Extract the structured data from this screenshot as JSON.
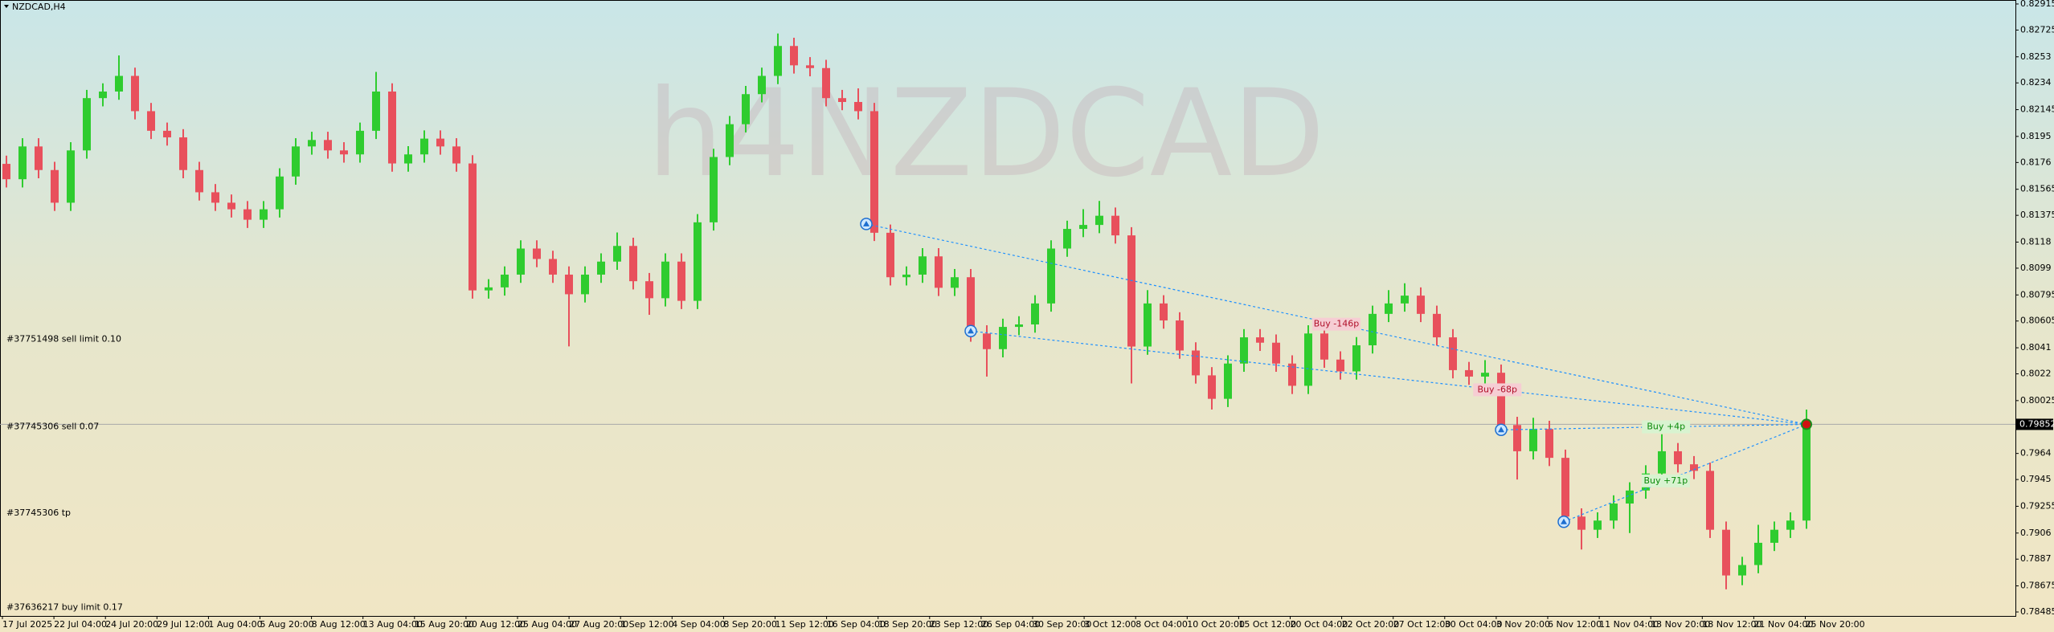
{
  "chart_data": {
    "type": "candlestick",
    "title": "NZDCAD,H4",
    "watermark": "h4NZDCAD",
    "up_color": "#2fcc2f",
    "down_color": "#e8505c",
    "ylim": [
      0.78456,
      0.82944
    ],
    "yticks": [
      0.82915,
      0.82725,
      0.8253,
      0.8234,
      0.82145,
      0.8195,
      0.8176,
      0.81565,
      0.81375,
      0.8118,
      0.8099,
      0.80795,
      0.80605,
      0.8041,
      0.8022,
      0.80025,
      0.7964,
      0.7945,
      0.79255,
      0.7906,
      0.7887,
      0.78675,
      0.78485
    ],
    "current_price": 0.79852,
    "categories": [
      "17 Jul 2025",
      "22 Jul 04:00",
      "24 Jul 20:00",
      "29 Jul 12:00",
      "1 Aug 04:00",
      "5 Aug 20:00",
      "8 Aug 12:00",
      "13 Aug 04:00",
      "15 Aug 20:00",
      "20 Aug 12:00",
      "25 Aug 04:00",
      "27 Aug 20:00",
      "1 Sep 12:00",
      "4 Sep 04:00",
      "8 Sep 20:00",
      "11 Sep 12:00",
      "16 Sep 04:00",
      "18 Sep 20:00",
      "23 Sep 12:00",
      "26 Sep 04:00",
      "30 Sep 20:00",
      "3 Oct 12:00",
      "8 Oct 04:00",
      "10 Oct 20:00",
      "15 Oct 12:00",
      "20 Oct 04:00",
      "22 Oct 20:00",
      "27 Oct 12:00",
      "30 Oct 04:00",
      "3 Nov 20:00",
      "6 Nov 12:00",
      "11 Nov 04:00",
      "13 Nov 20:00",
      "18 Nov 12:00",
      "21 Nov 04:00",
      "25 Nov 20:00"
    ],
    "ohlc": [
      [
        0.8175,
        0.8181,
        0.81578,
        0.81638
      ],
      [
        0.81638,
        0.81937,
        0.81578,
        0.81877
      ],
      [
        0.81877,
        0.81937,
        0.81645,
        0.81705
      ],
      [
        0.81705,
        0.81765,
        0.81407,
        0.81467
      ],
      [
        0.81467,
        0.81908,
        0.81407,
        0.81848
      ],
      [
        0.81848,
        0.82289,
        0.81788,
        0.82229
      ],
      [
        0.82229,
        0.82337,
        0.82169,
        0.82277
      ],
      [
        0.82277,
        0.8254,
        0.82217,
        0.82391
      ],
      [
        0.82391,
        0.82451,
        0.82074,
        0.82134
      ],
      [
        0.82134,
        0.82194,
        0.81931,
        0.81991
      ],
      [
        0.81991,
        0.82051,
        0.81883,
        0.81943
      ],
      [
        0.81943,
        0.82003,
        0.81645,
        0.81705
      ],
      [
        0.81705,
        0.81765,
        0.81483,
        0.81543
      ],
      [
        0.81543,
        0.81603,
        0.81407,
        0.81467
      ],
      [
        0.81467,
        0.81527,
        0.81359,
        0.81419
      ],
      [
        0.81419,
        0.81479,
        0.81283,
        0.81343
      ],
      [
        0.81343,
        0.81479,
        0.81283,
        0.81419
      ],
      [
        0.81419,
        0.81718,
        0.81359,
        0.81658
      ],
      [
        0.81658,
        0.81937,
        0.81598,
        0.81877
      ],
      [
        0.81877,
        0.81984,
        0.81817,
        0.81924
      ],
      [
        0.81924,
        0.81984,
        0.81788,
        0.81848
      ],
      [
        0.81848,
        0.81908,
        0.81759,
        0.81819
      ],
      [
        0.81819,
        0.82051,
        0.81759,
        0.81991
      ],
      [
        0.81991,
        0.8242,
        0.81931,
        0.82277
      ],
      [
        0.82277,
        0.82337,
        0.81693,
        0.81753
      ],
      [
        0.81753,
        0.81879,
        0.81693,
        0.81819
      ],
      [
        0.81819,
        0.81994,
        0.81759,
        0.81934
      ],
      [
        0.81934,
        0.81994,
        0.81817,
        0.81877
      ],
      [
        0.81877,
        0.81937,
        0.81693,
        0.81753
      ],
      [
        0.81753,
        0.81813,
        0.80768,
        0.80828
      ],
      [
        0.80828,
        0.8091,
        0.80768,
        0.8085
      ],
      [
        0.8085,
        0.81003,
        0.8079,
        0.80943
      ],
      [
        0.80943,
        0.81193,
        0.80883,
        0.81133
      ],
      [
        0.81133,
        0.81193,
        0.80997,
        0.81057
      ],
      [
        0.81057,
        0.81117,
        0.80883,
        0.80943
      ],
      [
        0.80943,
        0.81003,
        0.8042,
        0.808
      ],
      [
        0.808,
        0.81003,
        0.8074,
        0.80943
      ],
      [
        0.80943,
        0.81098,
        0.80883,
        0.81038
      ],
      [
        0.81038,
        0.8125,
        0.80978,
        0.81152
      ],
      [
        0.81152,
        0.81212,
        0.80835,
        0.80895
      ],
      [
        0.80895,
        0.80955,
        0.8065,
        0.80771
      ],
      [
        0.80771,
        0.81098,
        0.80711,
        0.81038
      ],
      [
        0.81038,
        0.81098,
        0.80692,
        0.80752
      ],
      [
        0.80752,
        0.81384,
        0.80692,
        0.81324
      ],
      [
        0.81324,
        0.8186,
        0.81264,
        0.818
      ],
      [
        0.818,
        0.82099,
        0.8174,
        0.82039
      ],
      [
        0.82039,
        0.82318,
        0.81979,
        0.82258
      ],
      [
        0.82258,
        0.82451,
        0.82198,
        0.82391
      ],
      [
        0.82391,
        0.827,
        0.82331,
        0.82609
      ],
      [
        0.82609,
        0.82669,
        0.82408,
        0.82468
      ],
      [
        0.82468,
        0.82528,
        0.82388,
        0.82448
      ],
      [
        0.82448,
        0.82508,
        0.82169,
        0.82229
      ],
      [
        0.82229,
        0.82289,
        0.82141,
        0.82201
      ],
      [
        0.82201,
        0.823,
        0.82074,
        0.82134
      ],
      [
        0.82134,
        0.82194,
        0.81188,
        0.81248
      ],
      [
        0.81248,
        0.81308,
        0.80864,
        0.80924
      ],
      [
        0.80924,
        0.81003,
        0.80864,
        0.80943
      ],
      [
        0.80943,
        0.81136,
        0.80883,
        0.81076
      ],
      [
        0.81076,
        0.81136,
        0.80787,
        0.80847
      ],
      [
        0.80847,
        0.80984,
        0.80787,
        0.80924
      ],
      [
        0.80924,
        0.80984,
        0.80454,
        0.80514
      ],
      [
        0.80514,
        0.80574,
        0.802,
        0.804
      ],
      [
        0.804,
        0.80622,
        0.8034,
        0.80562
      ],
      [
        0.80562,
        0.8064,
        0.80502,
        0.8058
      ],
      [
        0.8058,
        0.80793,
        0.8052,
        0.80733
      ],
      [
        0.80733,
        0.81193,
        0.80673,
        0.81133
      ],
      [
        0.81133,
        0.81336,
        0.81073,
        0.81276
      ],
      [
        0.81276,
        0.8142,
        0.81216,
        0.81305
      ],
      [
        0.81305,
        0.8148,
        0.81245,
        0.81372
      ],
      [
        0.81372,
        0.81432,
        0.81169,
        0.81229
      ],
      [
        0.81229,
        0.81289,
        0.8015,
        0.80419
      ],
      [
        0.80419,
        0.8083,
        0.80359,
        0.80733
      ],
      [
        0.80733,
        0.80793,
        0.80549,
        0.80609
      ],
      [
        0.80609,
        0.80669,
        0.8033,
        0.8039
      ],
      [
        0.8039,
        0.8045,
        0.80149,
        0.80209
      ],
      [
        0.80209,
        0.80269,
        0.7996,
        0.80038
      ],
      [
        0.80038,
        0.80355,
        0.79978,
        0.80295
      ],
      [
        0.80295,
        0.80546,
        0.80235,
        0.80486
      ],
      [
        0.80486,
        0.80546,
        0.80387,
        0.80447
      ],
      [
        0.80447,
        0.80507,
        0.80235,
        0.80295
      ],
      [
        0.80295,
        0.80355,
        0.80073,
        0.80133
      ],
      [
        0.80133,
        0.80574,
        0.80073,
        0.80514
      ],
      [
        0.80514,
        0.80574,
        0.80264,
        0.80324
      ],
      [
        0.80324,
        0.80384,
        0.80178,
        0.80238
      ],
      [
        0.80238,
        0.80488,
        0.80178,
        0.80428
      ],
      [
        0.80428,
        0.80717,
        0.80368,
        0.80657
      ],
      [
        0.80657,
        0.8083,
        0.80597,
        0.80733
      ],
      [
        0.80733,
        0.8088,
        0.80673,
        0.8079
      ],
      [
        0.8079,
        0.8085,
        0.80597,
        0.80657
      ],
      [
        0.80657,
        0.80717,
        0.80426,
        0.80486
      ],
      [
        0.80486,
        0.80546,
        0.80187,
        0.80247
      ],
      [
        0.80247,
        0.80307,
        0.8014,
        0.802
      ],
      [
        0.802,
        0.8032,
        0.8014,
        0.80228
      ],
      [
        0.80228,
        0.80288,
        0.79787,
        0.79847
      ],
      [
        0.79847,
        0.79907,
        0.7945,
        0.79656
      ],
      [
        0.79656,
        0.799,
        0.79596,
        0.79818
      ],
      [
        0.79818,
        0.79878,
        0.79548,
        0.79608
      ],
      [
        0.79608,
        0.79668,
        0.7912,
        0.7918
      ],
      [
        0.7918,
        0.7924,
        0.7894,
        0.79084
      ],
      [
        0.79084,
        0.79211,
        0.79024,
        0.79151
      ],
      [
        0.79151,
        0.79335,
        0.79091,
        0.79275
      ],
      [
        0.79275,
        0.7943,
        0.7906,
        0.7937
      ],
      [
        0.7937,
        0.79554,
        0.7931,
        0.79494
      ],
      [
        0.79494,
        0.7978,
        0.79434,
        0.79656
      ],
      [
        0.79656,
        0.79716,
        0.79501,
        0.79561
      ],
      [
        0.79561,
        0.79621,
        0.79453,
        0.79513
      ],
      [
        0.79513,
        0.79573,
        0.79024,
        0.79084
      ],
      [
        0.79084,
        0.79144,
        0.7865,
        0.78751
      ],
      [
        0.78751,
        0.78887,
        0.7868,
        0.78827
      ],
      [
        0.78827,
        0.7912,
        0.78767,
        0.78989
      ],
      [
        0.78989,
        0.79144,
        0.78929,
        0.79084
      ],
      [
        0.79084,
        0.79211,
        0.79024,
        0.79151
      ],
      [
        0.79151,
        0.7996,
        0.79091,
        0.79852
      ]
    ],
    "trades": [
      {
        "label": "Buy -146p",
        "bar": 53.5,
        "price": 0.81312
      },
      {
        "label": "Buy -68p",
        "bar": 60,
        "price": 0.80532
      },
      {
        "label": "Buy +4p",
        "bar": 93,
        "price": 0.79812
      },
      {
        "label": "Buy +71p",
        "bar": 96.9,
        "price": 0.79142
      }
    ],
    "orders": [
      {
        "label": "#37751498 sell limit 0.10",
        "price": 0.80466
      },
      {
        "label": "#37745306 sell 0.07",
        "price": 0.79828
      },
      {
        "label": "#37745306 tp",
        "price": 0.79199
      },
      {
        "label": "#37636217 buy limit 0.17",
        "price": 0.78513
      }
    ]
  }
}
